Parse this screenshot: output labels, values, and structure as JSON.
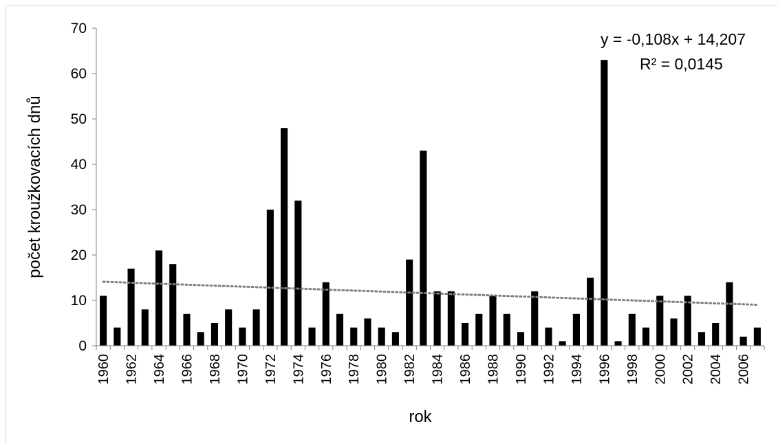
{
  "chart_data": {
    "type": "bar",
    "title": "",
    "xlabel": "rok",
    "ylabel": "počet kroužkovacích dnů",
    "ylim": [
      0,
      70
    ],
    "yticks": [
      "0",
      "10",
      "20",
      "30",
      "40",
      "50",
      "60",
      "70"
    ],
    "x_tick_labels": [
      "1960",
      "1962",
      "1964",
      "1966",
      "1968",
      "1970",
      "1972",
      "1974",
      "1976",
      "1978",
      "1980",
      "1982",
      "1984",
      "1986",
      "1988",
      "1990",
      "1992",
      "1994",
      "1996",
      "1998",
      "2000",
      "2002",
      "2004",
      "2006"
    ],
    "categories": [
      1960,
      1961,
      1962,
      1963,
      1964,
      1965,
      1966,
      1967,
      1968,
      1969,
      1970,
      1971,
      1972,
      1973,
      1974,
      1975,
      1976,
      1977,
      1978,
      1979,
      1980,
      1981,
      1982,
      1983,
      1984,
      1985,
      1986,
      1987,
      1988,
      1989,
      1990,
      1991,
      1992,
      1993,
      1994,
      1995,
      1996,
      1997,
      1998,
      1999,
      2000,
      2001,
      2002,
      2003,
      2004,
      2005,
      2006,
      2007
    ],
    "values": [
      11,
      4,
      17,
      8,
      21,
      18,
      7,
      3,
      5,
      8,
      4,
      8,
      30,
      48,
      32,
      4,
      14,
      7,
      4,
      6,
      4,
      3,
      19,
      43,
      12,
      12,
      5,
      7,
      11,
      7,
      3,
      12,
      4,
      1,
      7,
      15,
      63,
      1,
      7,
      4,
      11,
      6,
      11,
      3,
      5,
      14,
      2,
      4
    ],
    "trendline": {
      "type": "linear",
      "slope": -0.108,
      "intercept": 14.207,
      "style": "dotted"
    },
    "annotations": {
      "equation": "y = -0,108x + 14,207",
      "r_squared": "R² = 0,0145"
    },
    "grid": false,
    "legend": "none",
    "colors": {
      "bars": "#000000",
      "trendline": "#7f7f7f",
      "axis": "#808080"
    }
  }
}
